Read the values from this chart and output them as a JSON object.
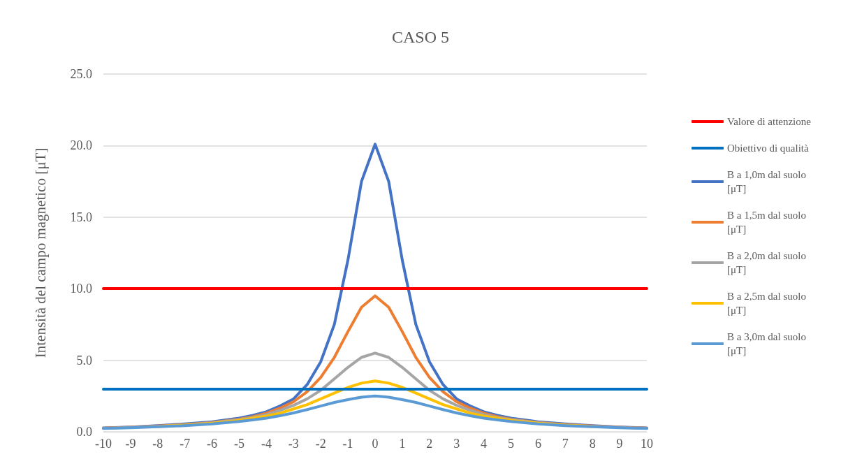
{
  "chart_data": {
    "type": "line",
    "title": "CASO 5",
    "ylabel": "Intensità del campo magnetico [μT]",
    "x": [
      -10,
      -9,
      -8,
      -7,
      -6,
      -5,
      -4.5,
      -4,
      -3.5,
      -3,
      -2.5,
      -2,
      -1.5,
      -1,
      -0.5,
      0,
      0.5,
      1,
      1.5,
      2,
      2.5,
      3,
      3.5,
      4,
      4.5,
      5,
      6,
      7,
      8,
      9,
      10
    ],
    "xlim": [
      -10,
      10
    ],
    "xticks": [
      -10,
      -9,
      -8,
      -7,
      -6,
      -5,
      -4,
      -3,
      -2,
      -1,
      0,
      1,
      2,
      3,
      4,
      5,
      6,
      7,
      8,
      9,
      10
    ],
    "ylim": [
      0,
      25
    ],
    "yticks": [
      {
        "value": 0,
        "label": "0.0"
      },
      {
        "value": 5,
        "label": "5.0"
      },
      {
        "value": 10,
        "label": "10.0"
      },
      {
        "value": 15,
        "label": "15.0"
      },
      {
        "value": 20,
        "label": "20.0"
      },
      {
        "value": 25,
        "label": "25.0"
      }
    ],
    "ref_lines": [
      {
        "axis": "y",
        "value": 10,
        "label": "Valore di attenzione",
        "color": "#ff0000"
      },
      {
        "axis": "y",
        "value": 3,
        "label": "Obiettivo di qualità",
        "color": "#0070c0"
      }
    ],
    "grid": "y",
    "legend": "right",
    "marker": "none",
    "line_style": "solid",
    "series": [
      {
        "name": "B a 1,0m dal suolo [μT]",
        "color": "#4472c4",
        "values": [
          0.27,
          0.33,
          0.43,
          0.55,
          0.7,
          0.95,
          1.15,
          1.4,
          1.8,
          2.3,
          3.3,
          4.9,
          7.5,
          12.0,
          17.5,
          20.1,
          17.5,
          12.0,
          7.5,
          4.9,
          3.3,
          2.3,
          1.8,
          1.4,
          1.15,
          0.95,
          0.7,
          0.55,
          0.43,
          0.33,
          0.27
        ]
      },
      {
        "name": "B a 1,5m dal suolo [μT]",
        "color": "#ed7d31",
        "values": [
          0.26,
          0.32,
          0.4,
          0.5,
          0.65,
          0.88,
          1.05,
          1.3,
          1.65,
          2.1,
          2.8,
          3.8,
          5.2,
          7.0,
          8.7,
          9.5,
          8.7,
          7.0,
          5.2,
          3.8,
          2.8,
          2.1,
          1.65,
          1.3,
          1.05,
          0.88,
          0.65,
          0.5,
          0.4,
          0.32,
          0.26
        ]
      },
      {
        "name": "B a 2,0m dal suolo [μT]",
        "color": "#a5a5a5",
        "values": [
          0.25,
          0.31,
          0.38,
          0.48,
          0.63,
          0.85,
          1.0,
          1.2,
          1.5,
          1.85,
          2.3,
          2.9,
          3.7,
          4.5,
          5.2,
          5.5,
          5.2,
          4.5,
          3.7,
          2.9,
          2.3,
          1.85,
          1.5,
          1.2,
          1.0,
          0.85,
          0.63,
          0.48,
          0.38,
          0.31,
          0.25
        ]
      },
      {
        "name": "B a 2,5m dal suolo [μT]",
        "color": "#ffc000",
        "values": [
          null,
          null,
          0.37,
          0.47,
          0.6,
          0.8,
          0.95,
          1.1,
          1.3,
          1.6,
          1.9,
          2.3,
          2.7,
          3.1,
          3.4,
          3.55,
          3.4,
          3.1,
          2.7,
          2.3,
          1.9,
          1.6,
          1.3,
          1.1,
          0.95,
          0.8,
          0.6,
          0.47,
          0.37,
          null,
          null
        ]
      },
      {
        "name": "B a 3,0m dal suolo [μT]",
        "color": "#5b9bd5",
        "values": [
          0.23,
          0.28,
          0.35,
          0.43,
          0.55,
          0.72,
          0.83,
          0.95,
          1.12,
          1.32,
          1.55,
          1.8,
          2.05,
          2.25,
          2.42,
          2.5,
          2.42,
          2.25,
          2.05,
          1.8,
          1.55,
          1.32,
          1.12,
          0.95,
          0.83,
          0.72,
          0.55,
          0.43,
          0.35,
          0.28,
          0.23
        ]
      }
    ]
  }
}
